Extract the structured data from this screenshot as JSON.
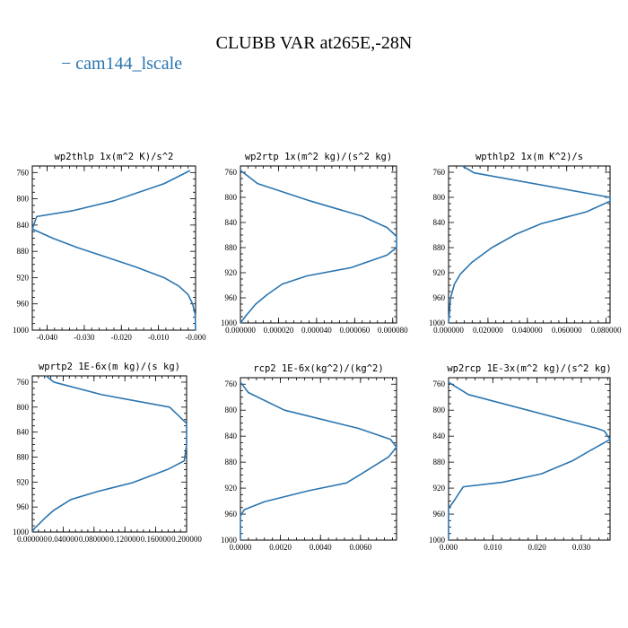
{
  "figure": {
    "title": "CLUBB VAR at265E,-28N",
    "legend": [
      {
        "label": "− cam144_lscale",
        "color": "#2a75b0"
      }
    ]
  },
  "chart_data": [
    {
      "type": "line",
      "title": "wp2thlp  1x(m^2 K)/s^2",
      "ylim": [
        1000,
        750
      ],
      "xlim": [
        -0.044,
        0.0
      ],
      "yticks": [
        "760",
        "800",
        "840",
        "880",
        "920",
        "960",
        "1000"
      ],
      "xticks": [
        "-0.040",
        "-0.030",
        "-0.020",
        "-0.010",
        "-0.000"
      ],
      "xtick_values": [
        -0.04,
        -0.03,
        -0.02,
        -0.01,
        0.0
      ],
      "series": [
        {
          "color": "#2a75b0",
          "x": [
            -0.0015,
            -0.0085,
            -0.022,
            -0.033,
            -0.0428,
            -0.0432,
            -0.044,
            -0.0385,
            -0.032,
            -0.0245,
            -0.016,
            -0.0085,
            -0.0045,
            -0.002,
            -0.0008,
            -0.0001,
            0.0
          ],
          "y": [
            757,
            777,
            803,
            818,
            827,
            833,
            846,
            860,
            874,
            888,
            904,
            920,
            933,
            946,
            960,
            976,
            1000
          ]
        }
      ]
    },
    {
      "type": "line",
      "title": "wp2rtp  1x(m^2 kg)/(s^2 kg)",
      "ylim": [
        1000,
        750
      ],
      "xlim": [
        0.0,
        8.2e-05
      ],
      "yticks": [
        "760",
        "800",
        "840",
        "880",
        "920",
        "960",
        "1000"
      ],
      "xticks": [
        "0.000000",
        "0.000020",
        "0.000040",
        "0.000060",
        "0.000080"
      ],
      "xtick_values": [
        0.0,
        2e-05,
        4e-05,
        6e-05,
        8e-05
      ],
      "series": [
        {
          "color": "#2a75b0",
          "x": [
            0.0,
            9e-06,
            3.7e-05,
            6.4e-05,
            7.7e-05,
            8.2e-05,
            8.2e-05,
            7.7e-05,
            5.8e-05,
            3.5e-05,
            2.2e-05,
            1.4e-05,
            8e-06,
            3e-06,
            0.0
          ],
          "y": [
            757,
            778,
            806,
            830,
            848,
            862,
            880,
            892,
            912,
            925,
            938,
            955,
            970,
            988,
            1000
          ]
        }
      ]
    },
    {
      "type": "line",
      "title": "wpthlp2  1x(m K^2)/s",
      "ylim": [
        1000,
        750
      ],
      "xlim": [
        0.0,
        0.082
      ],
      "yticks": [
        "760",
        "800",
        "840",
        "880",
        "920",
        "960",
        "1000"
      ],
      "xticks": [
        "0.000000",
        "0.020000",
        "0.040000",
        "0.060000",
        "0.080000"
      ],
      "xtick_values": [
        0.0,
        0.02,
        0.04,
        0.06,
        0.08
      ],
      "series": [
        {
          "color": "#2a75b0",
          "x": [
            0.007,
            0.013,
            0.082,
            0.082,
            0.07,
            0.047,
            0.034,
            0.022,
            0.012,
            0.006,
            0.003,
            0.001,
            0.0
          ],
          "y": [
            750,
            761,
            800,
            806,
            823,
            842,
            859,
            880,
            903,
            922,
            938,
            960,
            1000
          ]
        }
      ]
    },
    {
      "type": "line",
      "title": "wprtp2  1E-6x(m kg)/(s kg)",
      "ylim": [
        1000,
        750
      ],
      "xlim": [
        0.0,
        0.2
      ],
      "yticks": [
        "760",
        "800",
        "840",
        "880",
        "920",
        "960",
        "1000"
      ],
      "xticks": [
        "0.000000",
        "0.040000",
        "0.080000",
        "0.120000",
        "0.160000",
        "0.200000"
      ],
      "xtick_values": [
        0.0,
        0.04,
        0.08,
        0.12,
        0.16,
        0.2
      ],
      "series": [
        {
          "color": "#2a75b0",
          "x": [
            0.018,
            0.028,
            0.09,
            0.178,
            0.2,
            0.2,
            0.197,
            0.175,
            0.13,
            0.085,
            0.05,
            0.028,
            0.017,
            0.008,
            0.003,
            0.0
          ],
          "y": [
            750,
            760,
            780,
            800,
            826,
            860,
            886,
            900,
            921,
            935,
            948,
            965,
            977,
            988,
            994,
            1000
          ]
        }
      ]
    },
    {
      "type": "line",
      "title": "rcp2  1E-6x(kg^2)/(kg^2)",
      "ylim": [
        1000,
        750
      ],
      "xlim": [
        0.0,
        0.0078
      ],
      "yticks": [
        "760",
        "800",
        "840",
        "880",
        "920",
        "960",
        "1000"
      ],
      "xticks": [
        "0.0000",
        "0.0020",
        "0.0040",
        "0.0060"
      ],
      "xtick_values": [
        0.0,
        0.002,
        0.004,
        0.006
      ],
      "series": [
        {
          "color": "#2a75b0",
          "x": [
            0.0,
            0.0004,
            0.0022,
            0.0059,
            0.0075,
            0.0078,
            0.0074,
            0.0061,
            0.0053,
            0.0034,
            0.0012,
            0.0002,
            0.0,
            0.0
          ],
          "y": [
            757,
            773,
            800,
            828,
            845,
            857,
            872,
            897,
            912,
            924,
            941,
            953,
            963,
            1000
          ]
        }
      ]
    },
    {
      "type": "line",
      "title": "wp2rcp  1E-3x(m^2 kg)/(s^2 kg)",
      "ylim": [
        1000,
        750
      ],
      "xlim": [
        0.0,
        0.0365
      ],
      "yticks": [
        "760",
        "800",
        "840",
        "880",
        "920",
        "960",
        "1000"
      ],
      "xticks": [
        "0.000",
        "0.010",
        "0.020",
        "0.030"
      ],
      "xtick_values": [
        0.0,
        0.01,
        0.02,
        0.03
      ],
      "series": [
        {
          "color": "#2a75b0",
          "x": [
            0.0,
            0.0045,
            0.0335,
            0.0352,
            0.0365,
            0.0318,
            0.028,
            0.021,
            0.0122,
            0.0033,
            0.0011,
            0.0,
            0.0
          ],
          "y": [
            757,
            776,
            828,
            832,
            845,
            863,
            878,
            898,
            911,
            918,
            941,
            951,
            1000
          ]
        }
      ]
    }
  ]
}
